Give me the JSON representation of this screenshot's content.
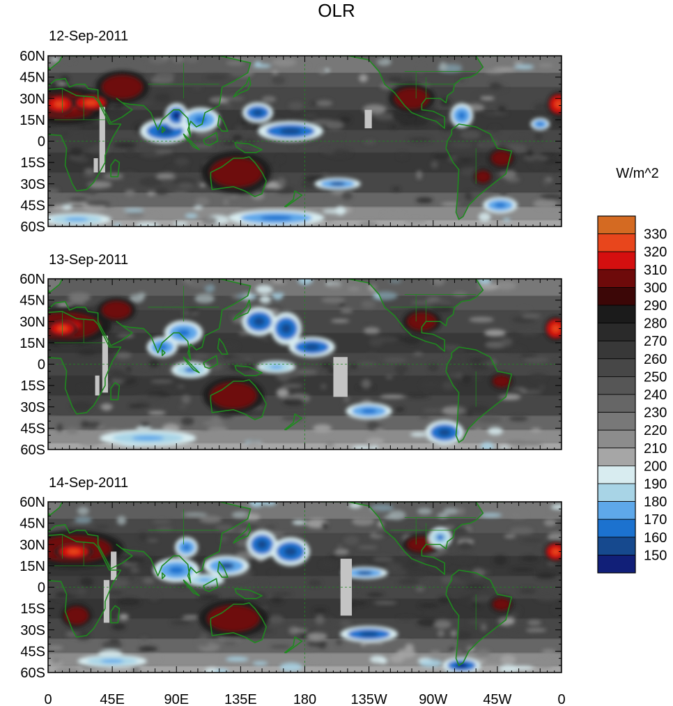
{
  "chart_data": {
    "type": "heatmap",
    "title": "OLR",
    "units_label": "W/m^2",
    "xlabel": "",
    "ylabel": "",
    "x_ticks": [
      "0",
      "45E",
      "90E",
      "135E",
      "180",
      "135W",
      "90W",
      "45W",
      "0"
    ],
    "x_tick_lons": [
      0,
      45,
      90,
      135,
      180,
      225,
      270,
      315,
      360
    ],
    "y_ticks": [
      "60N",
      "45N",
      "30N",
      "15N",
      "0",
      "15S",
      "30S",
      "45S",
      "60S"
    ],
    "y_tick_lats": [
      60,
      45,
      30,
      15,
      0,
      -15,
      -30,
      -45,
      -60
    ],
    "xlim": [
      0,
      360
    ],
    "ylim": [
      -60,
      60
    ],
    "colorbar": {
      "levels": [
        330,
        320,
        310,
        300,
        290,
        280,
        270,
        260,
        250,
        240,
        230,
        220,
        210,
        200,
        190,
        180,
        170,
        160,
        150
      ],
      "colors": [
        "#d46a22",
        "#e8461c",
        "#d40f0f",
        "#6e0a0a",
        "#3c0707",
        "#1b1b1b",
        "#2a2a2a",
        "#383838",
        "#474747",
        "#565656",
        "#666666",
        "#787878",
        "#8c8c8c",
        "#a6a6a6",
        "#d8ecf0",
        "#a8d4e6",
        "#5ea8ea",
        "#1c72cf",
        "#16498e",
        "#111f78"
      ]
    },
    "panels": [
      {
        "date": "12-Sep-2011",
        "missing_data": [
          {
            "lon": [
              36,
              40
            ],
            "lat": [
              -22,
              24
            ]
          },
          {
            "lon": [
              32,
              35
            ],
            "lat": [
              -22,
              -12
            ]
          },
          {
            "lon": [
              222,
              227
            ],
            "lat": [
              9,
              22
            ]
          }
        ],
        "features": [
          {
            "value": 305,
            "lon": 12,
            "lat": 25,
            "rx": 22,
            "ry": 9
          },
          {
            "value": 318,
            "lon": 8,
            "lat": 26,
            "rx": 8,
            "ry": 5
          },
          {
            "value": 315,
            "lon": 30,
            "lat": 27,
            "rx": 10,
            "ry": 4
          },
          {
            "value": 300,
            "lon": 52,
            "lat": 38,
            "rx": 14,
            "ry": 8
          },
          {
            "value": 300,
            "lon": 132,
            "lat": -22,
            "rx": 18,
            "ry": 10
          },
          {
            "value": 300,
            "lon": 255,
            "lat": 30,
            "rx": 12,
            "ry": 7
          },
          {
            "value": 315,
            "lon": 358,
            "lat": 26,
            "rx": 6,
            "ry": 6
          },
          {
            "value": 300,
            "lon": 318,
            "lat": -12,
            "rx": 7,
            "ry": 5
          },
          {
            "value": 300,
            "lon": 305,
            "lat": -25,
            "rx": 5,
            "ry": 4
          },
          {
            "value": 165,
            "lon": 82,
            "lat": 7,
            "rx": 13,
            "ry": 6
          },
          {
            "value": 160,
            "lon": 90,
            "lat": 18,
            "rx": 6,
            "ry": 6
          },
          {
            "value": 175,
            "lon": 107,
            "lat": 15,
            "rx": 10,
            "ry": 6
          },
          {
            "value": 165,
            "lon": 147,
            "lat": 20,
            "rx": 8,
            "ry": 5
          },
          {
            "value": 165,
            "lon": 170,
            "lat": 7,
            "rx": 17,
            "ry": 5
          },
          {
            "value": 170,
            "lon": 203,
            "lat": -30,
            "rx": 12,
            "ry": 3
          },
          {
            "value": 175,
            "lon": 290,
            "lat": 18,
            "rx": 6,
            "ry": 6
          },
          {
            "value": 175,
            "lon": 317,
            "lat": -45,
            "rx": 9,
            "ry": 4
          },
          {
            "value": 175,
            "lon": 160,
            "lat": -54,
            "rx": 25,
            "ry": 4
          },
          {
            "value": 185,
            "lon": 20,
            "lat": -55,
            "rx": 18,
            "ry": 3
          },
          {
            "value": 175,
            "lon": 345,
            "lat": 12,
            "rx": 5,
            "ry": 3
          }
        ]
      },
      {
        "date": "13-Sep-2011",
        "missing_data": [
          {
            "lon": [
              38,
              42
            ],
            "lat": [
              -20,
              20
            ]
          },
          {
            "lon": [
              33,
              36
            ],
            "lat": [
              -22,
              -8
            ]
          },
          {
            "lon": [
              200,
              210
            ],
            "lat": [
              -23,
              5
            ]
          }
        ],
        "features": [
          {
            "value": 305,
            "lon": 12,
            "lat": 27,
            "rx": 24,
            "ry": 9
          },
          {
            "value": 318,
            "lon": 10,
            "lat": 25,
            "rx": 8,
            "ry": 4
          },
          {
            "value": 300,
            "lon": 48,
            "lat": 38,
            "rx": 10,
            "ry": 6
          },
          {
            "value": 300,
            "lon": 130,
            "lat": -22,
            "rx": 16,
            "ry": 9
          },
          {
            "value": 300,
            "lon": 262,
            "lat": 30,
            "rx": 10,
            "ry": 6
          },
          {
            "value": 315,
            "lon": 356,
            "lat": 25,
            "rx": 6,
            "ry": 6
          },
          {
            "value": 300,
            "lon": 318,
            "lat": -12,
            "rx": 6,
            "ry": 4
          },
          {
            "value": 165,
            "lon": 148,
            "lat": 30,
            "rx": 9,
            "ry": 7
          },
          {
            "value": 165,
            "lon": 167,
            "lat": 25,
            "rx": 8,
            "ry": 8
          },
          {
            "value": 165,
            "lon": 185,
            "lat": 12,
            "rx": 12,
            "ry": 5
          },
          {
            "value": 175,
            "lon": 95,
            "lat": 22,
            "rx": 10,
            "ry": 6
          },
          {
            "value": 175,
            "lon": 80,
            "lat": 12,
            "rx": 8,
            "ry": 5
          },
          {
            "value": 175,
            "lon": 225,
            "lat": -33,
            "rx": 12,
            "ry": 4
          },
          {
            "value": 165,
            "lon": 278,
            "lat": -48,
            "rx": 10,
            "ry": 6
          },
          {
            "value": 180,
            "lon": 100,
            "lat": -4,
            "rx": 10,
            "ry": 4
          },
          {
            "value": 185,
            "lon": 160,
            "lat": -2,
            "rx": 10,
            "ry": 3
          },
          {
            "value": 185,
            "lon": 70,
            "lat": -52,
            "rx": 25,
            "ry": 4
          }
        ]
      },
      {
        "date": "14-Sep-2011",
        "missing_data": [
          {
            "lon": [
              44,
              48
            ],
            "lat": [
              5,
              25
            ]
          },
          {
            "lon": [
              39,
              43
            ],
            "lat": [
              -25,
              5
            ]
          },
          {
            "lon": [
              205,
              213
            ],
            "lat": [
              -20,
              20
            ]
          }
        ],
        "features": [
          {
            "value": 305,
            "lon": 18,
            "lat": 27,
            "rx": 26,
            "ry": 9
          },
          {
            "value": 318,
            "lon": 18,
            "lat": 25,
            "rx": 10,
            "ry": 4
          },
          {
            "value": 300,
            "lon": 130,
            "lat": -22,
            "rx": 18,
            "ry": 9
          },
          {
            "value": 300,
            "lon": 20,
            "lat": -20,
            "rx": 8,
            "ry": 6
          },
          {
            "value": 300,
            "lon": 262,
            "lat": 30,
            "rx": 10,
            "ry": 5
          },
          {
            "value": 315,
            "lon": 356,
            "lat": 25,
            "rx": 6,
            "ry": 5
          },
          {
            "value": 300,
            "lon": 318,
            "lat": -12,
            "rx": 6,
            "ry": 4
          },
          {
            "value": 165,
            "lon": 150,
            "lat": 30,
            "rx": 8,
            "ry": 7
          },
          {
            "value": 165,
            "lon": 170,
            "lat": 25,
            "rx": 10,
            "ry": 7
          },
          {
            "value": 170,
            "lon": 125,
            "lat": 15,
            "rx": 12,
            "ry": 5
          },
          {
            "value": 175,
            "lon": 90,
            "lat": 12,
            "rx": 12,
            "ry": 6
          },
          {
            "value": 175,
            "lon": 97,
            "lat": 28,
            "rx": 6,
            "ry": 5
          },
          {
            "value": 170,
            "lon": 222,
            "lat": 10,
            "rx": 12,
            "ry": 3
          },
          {
            "value": 165,
            "lon": 225,
            "lat": -33,
            "rx": 15,
            "ry": 4
          },
          {
            "value": 160,
            "lon": 290,
            "lat": -55,
            "rx": 10,
            "ry": 4
          },
          {
            "value": 180,
            "lon": 275,
            "lat": 35,
            "rx": 6,
            "ry": 5
          },
          {
            "value": 185,
            "lon": 45,
            "lat": -52,
            "rx": 18,
            "ry": 3
          },
          {
            "value": 185,
            "lon": 110,
            "lat": 5,
            "rx": 10,
            "ry": 3
          }
        ]
      }
    ]
  }
}
